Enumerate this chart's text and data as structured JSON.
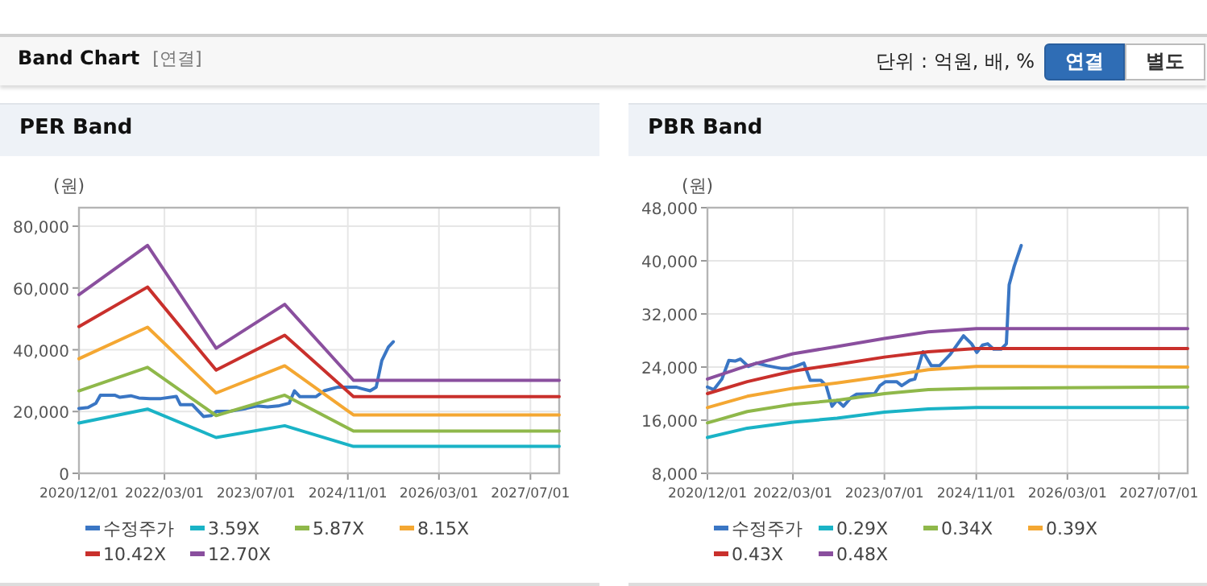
{
  "chart_data": [
    {
      "type": "other",
      "title": "Band Chart",
      "subtitle": "[연결]",
      "annotations": [
        "단위 : 억원, 배, %",
        "연결",
        "별도"
      ]
    },
    {
      "type": "line",
      "title": "PER Band",
      "ylabel": "(원)",
      "grid": true,
      "legend": "bottom",
      "xlim": [
        "2020-12-01",
        "2027-12-01"
      ],
      "xticks": [
        {
          "value": "2020-12-01",
          "label": "2020/12/01"
        },
        {
          "value": "2022-03-01",
          "label": "2022/03/01"
        },
        {
          "value": "2023-07-01",
          "label": "2023/07/01"
        },
        {
          "value": "2024-11-01",
          "label": "2024/11/01"
        },
        {
          "value": "2026-03-01",
          "label": "2026/03/01"
        },
        {
          "value": "2027-07-01",
          "label": "2027/07/01"
        }
      ],
      "ylim": [
        0,
        86000
      ],
      "yticks": [
        0,
        {
          "value": 20000,
          "label": "20,000"
        },
        {
          "value": 40000,
          "label": "40,000"
        },
        {
          "value": 60000,
          "label": "60,000"
        },
        {
          "value": 80000,
          "label": "80,000"
        }
      ],
      "series": [
        {
          "name": "수정주가",
          "color": "#3a76c4",
          "x": [
            "2020-12-01",
            "2021-01-18",
            "2021-03-01",
            "2021-03-25",
            "2021-06-09",
            "2021-07-07",
            "2021-09-03",
            "2021-10-16",
            "2021-12-13",
            "2022-02-10",
            "2022-05-03",
            "2022-05-25",
            "2022-07-28",
            "2022-09-25",
            "2022-11-06",
            "2022-12-04",
            "2023-02-15",
            "2023-05-10",
            "2023-07-06",
            "2023-09-01",
            "2023-10-28",
            "2023-12-25",
            "2024-01-22",
            "2024-02-20",
            "2024-05-15",
            "2024-06-28",
            "2024-09-10",
            "2024-11-18",
            "2024-12-15",
            "2025-01-15",
            "2025-02-28",
            "2025-04-01",
            "2025-05-01",
            "2025-06-05",
            "2025-07-01"
          ],
          "values": [
            21000,
            21300,
            22700,
            25300,
            25300,
            24600,
            25100,
            24400,
            24200,
            24200,
            24900,
            22200,
            22200,
            18400,
            18700,
            20100,
            20100,
            21000,
            21800,
            21500,
            21800,
            22700,
            26700,
            24800,
            24800,
            26700,
            27900,
            27900,
            27900,
            27400,
            26700,
            27900,
            36500,
            40900,
            42600
          ]
        },
        {
          "name": "3.59X",
          "color": "#1ab3c6",
          "x": [
            "2020-12-01",
            "2021-12-01",
            "2022-12-01",
            "2023-12-01",
            "2024-12-01",
            "2027-12-01"
          ],
          "values": [
            16300,
            20800,
            11600,
            15400,
            8700,
            8700
          ]
        },
        {
          "name": "5.87X",
          "color": "#8fb84a",
          "x": [
            "2020-12-01",
            "2021-12-01",
            "2022-12-01",
            "2023-12-01",
            "2024-12-01",
            "2027-12-01"
          ],
          "values": [
            26700,
            34300,
            18700,
            25300,
            13700,
            13700
          ]
        },
        {
          "name": "8.15X",
          "color": "#f4a732",
          "x": [
            "2020-12-01",
            "2021-12-01",
            "2022-12-01",
            "2023-12-01",
            "2024-12-01",
            "2027-12-01"
          ],
          "values": [
            37100,
            47300,
            26000,
            34800,
            18900,
            18900
          ]
        },
        {
          "name": "10.42X",
          "color": "#c9302c",
          "x": [
            "2020-12-01",
            "2021-12-01",
            "2022-12-01",
            "2023-12-01",
            "2024-12-01",
            "2027-12-01"
          ],
          "values": [
            47500,
            60300,
            33400,
            44700,
            24800,
            24800
          ]
        },
        {
          "name": "12.70X",
          "color": "#8a4f9e",
          "x": [
            "2020-12-01",
            "2021-12-01",
            "2022-12-01",
            "2023-12-01",
            "2024-12-01",
            "2027-12-01"
          ],
          "values": [
            57800,
            73800,
            40500,
            54700,
            30100,
            30100
          ]
        }
      ]
    },
    {
      "type": "line",
      "title": "PBR Band",
      "ylabel": "(원)",
      "grid": true,
      "legend": "bottom",
      "xlim": [
        "2020-12-01",
        "2027-12-01"
      ],
      "xticks": [
        {
          "value": "2020-12-01",
          "label": "2020/12/01"
        },
        {
          "value": "2022-03-01",
          "label": "2022/03/01"
        },
        {
          "value": "2023-07-01",
          "label": "2023/07/01"
        },
        {
          "value": "2024-11-01",
          "label": "2024/11/01"
        },
        {
          "value": "2026-03-01",
          "label": "2026/03/01"
        },
        {
          "value": "2027-07-01",
          "label": "2027/07/01"
        }
      ],
      "ylim": [
        8000,
        48000
      ],
      "yticks": [
        {
          "value": 8000,
          "label": "8,000"
        },
        {
          "value": 16000,
          "label": "16,000"
        },
        {
          "value": 24000,
          "label": "24,000"
        },
        {
          "value": 32000,
          "label": "32,000"
        },
        {
          "value": 40000,
          "label": "40,000"
        },
        {
          "value": 48000,
          "label": "48,000"
        }
      ],
      "series": [
        {
          "name": "수정주가",
          "color": "#3a76c4",
          "x": [
            "2020-12-01",
            "2021-01-04",
            "2021-02-16",
            "2021-03-25",
            "2021-04-27",
            "2021-05-25",
            "2021-07-07",
            "2021-08-19",
            "2021-10-16",
            "2021-12-28",
            "2022-02-09",
            "2022-03-22",
            "2022-04-28",
            "2022-06-01",
            "2022-07-28",
            "2022-08-25",
            "2022-09-25",
            "2022-10-22",
            "2022-11-25",
            "2023-01-04",
            "2023-02-01",
            "2023-05-10",
            "2023-06-07",
            "2023-07-07",
            "2023-09-04",
            "2023-10-01",
            "2023-11-13",
            "2023-12-10",
            "2024-01-22",
            "2024-03-07",
            "2024-04-19",
            "2024-06-15",
            "2024-08-25",
            "2024-10-07",
            "2024-11-04",
            "2024-12-04",
            "2025-01-01",
            "2025-02-01",
            "2025-03-13",
            "2025-04-10",
            "2025-04-25",
            "2025-05-22",
            "2025-06-28"
          ],
          "values": [
            21000,
            20600,
            22200,
            25000,
            24900,
            25200,
            24100,
            24600,
            24200,
            23800,
            23800,
            24200,
            24600,
            22000,
            22000,
            21200,
            18100,
            19000,
            18100,
            19400,
            19900,
            20000,
            21200,
            21800,
            21800,
            21200,
            22000,
            22200,
            26300,
            24200,
            24200,
            25900,
            28700,
            27500,
            26200,
            27300,
            27500,
            26700,
            26700,
            27500,
            36400,
            39200,
            42300
          ]
        },
        {
          "name": "0.29X",
          "color": "#1ab3c6",
          "x": [
            "2020-12-01",
            "2021-07-01",
            "2022-03-01",
            "2022-10-22",
            "2023-07-01",
            "2024-02-20",
            "2024-11-01",
            "2027-12-01"
          ],
          "values": [
            13400,
            14800,
            15700,
            16300,
            17200,
            17700,
            17900,
            17900
          ]
        },
        {
          "name": "0.34X",
          "color": "#8fb84a",
          "x": [
            "2020-12-01",
            "2021-07-01",
            "2022-03-01",
            "2022-10-22",
            "2023-07-01",
            "2024-02-20",
            "2024-11-01",
            "2027-12-01"
          ],
          "values": [
            15600,
            17300,
            18400,
            19000,
            20000,
            20600,
            20800,
            21000
          ]
        },
        {
          "name": "0.39X",
          "color": "#f4a732",
          "x": [
            "2020-12-01",
            "2021-07-01",
            "2022-03-01",
            "2022-10-22",
            "2023-07-01",
            "2024-02-20",
            "2024-11-01",
            "2027-12-01"
          ],
          "values": [
            17900,
            19600,
            20800,
            21600,
            22600,
            23600,
            24100,
            24000
          ]
        },
        {
          "name": "0.43X",
          "color": "#c9302c",
          "x": [
            "2020-12-01",
            "2021-07-01",
            "2022-03-01",
            "2022-10-22",
            "2023-07-01",
            "2024-02-20",
            "2024-11-01",
            "2027-12-01"
          ],
          "values": [
            20000,
            21800,
            23400,
            24400,
            25500,
            26300,
            26800,
            26800
          ]
        },
        {
          "name": "0.48X",
          "color": "#8a4f9e",
          "x": [
            "2020-12-01",
            "2021-07-01",
            "2022-03-01",
            "2022-10-22",
            "2023-07-01",
            "2024-02-20",
            "2024-11-01",
            "2027-12-01"
          ],
          "values": [
            22200,
            24200,
            26000,
            27100,
            28300,
            29300,
            29800,
            29800
          ]
        }
      ]
    }
  ]
}
